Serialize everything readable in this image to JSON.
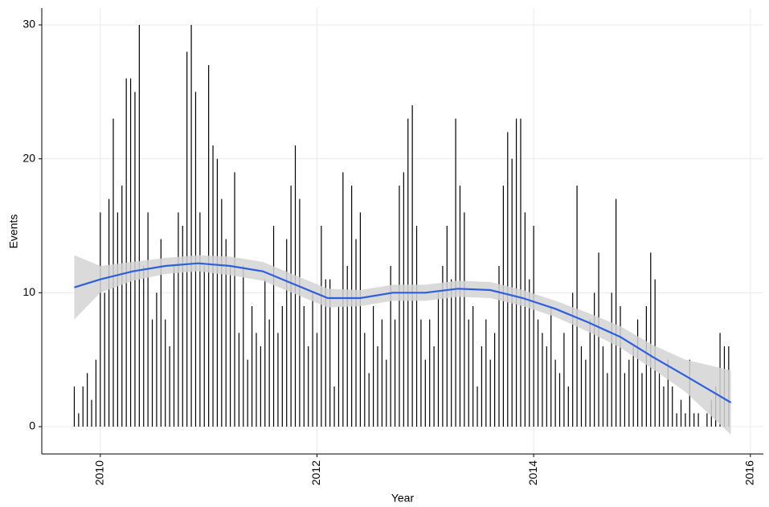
{
  "chart_data": {
    "type": "bar",
    "x_label": "Year",
    "y_label": "Events",
    "x": [
      2009.76,
      2009.8,
      2009.84,
      2009.88,
      2009.92,
      2009.96,
      2010.0,
      2010.04,
      2010.08,
      2010.12,
      2010.16,
      2010.2,
      2010.24,
      2010.28,
      2010.32,
      2010.36,
      2010.4,
      2010.44,
      2010.48,
      2010.52,
      2010.56,
      2010.6,
      2010.64,
      2010.68,
      2010.72,
      2010.76,
      2010.8,
      2010.84,
      2010.88,
      2010.92,
      2010.96,
      2011.0,
      2011.04,
      2011.08,
      2011.12,
      2011.16,
      2011.2,
      2011.24,
      2011.28,
      2011.32,
      2011.36,
      2011.4,
      2011.44,
      2011.48,
      2011.52,
      2011.56,
      2011.6,
      2011.64,
      2011.68,
      2011.72,
      2011.76,
      2011.8,
      2011.84,
      2011.88,
      2011.92,
      2011.96,
      2012.0,
      2012.04,
      2012.08,
      2012.12,
      2012.16,
      2012.2,
      2012.24,
      2012.28,
      2012.32,
      2012.36,
      2012.4,
      2012.44,
      2012.48,
      2012.52,
      2012.56,
      2012.6,
      2012.64,
      2012.68,
      2012.72,
      2012.76,
      2012.8,
      2012.84,
      2012.88,
      2012.92,
      2012.96,
      2013.0,
      2013.04,
      2013.08,
      2013.12,
      2013.16,
      2013.2,
      2013.24,
      2013.28,
      2013.32,
      2013.36,
      2013.4,
      2013.44,
      2013.48,
      2013.52,
      2013.56,
      2013.6,
      2013.64,
      2013.68,
      2013.72,
      2013.76,
      2013.8,
      2013.84,
      2013.88,
      2013.92,
      2013.96,
      2014.0,
      2014.04,
      2014.08,
      2014.12,
      2014.16,
      2014.2,
      2014.24,
      2014.28,
      2014.32,
      2014.36,
      2014.4,
      2014.44,
      2014.48,
      2014.52,
      2014.56,
      2014.6,
      2014.64,
      2014.68,
      2014.72,
      2014.76,
      2014.8,
      2014.84,
      2014.88,
      2014.92,
      2014.96,
      2015.0,
      2015.04,
      2015.08,
      2015.12,
      2015.16,
      2015.2,
      2015.24,
      2015.28,
      2015.32,
      2015.36,
      2015.4,
      2015.44,
      2015.48,
      2015.52,
      2015.56,
      2015.6,
      2015.64,
      2015.68,
      2015.72,
      2015.76,
      2015.8
    ],
    "values": [
      3,
      1,
      3,
      4,
      2,
      5,
      16,
      10,
      17,
      23,
      16,
      18,
      26,
      26,
      25,
      30,
      12,
      16,
      8,
      10,
      14,
      8,
      6,
      12,
      16,
      15,
      28,
      30,
      25,
      16,
      12,
      27,
      21,
      20,
      17,
      14,
      12,
      19,
      7,
      12,
      5,
      9,
      7,
      6,
      11,
      8,
      15,
      7,
      9,
      14,
      18,
      21,
      17,
      9,
      6,
      10,
      7,
      15,
      11,
      11,
      3,
      9,
      19,
      12,
      18,
      14,
      16,
      7,
      4,
      9,
      6,
      8,
      5,
      12,
      8,
      18,
      19,
      23,
      24,
      15,
      8,
      5,
      8,
      6,
      10,
      12,
      15,
      11,
      23,
      18,
      16,
      8,
      9,
      3,
      6,
      8,
      5,
      7,
      12,
      18,
      22,
      20,
      23,
      23,
      16,
      11,
      15,
      8,
      7,
      6,
      9,
      5,
      4,
      7,
      3,
      10,
      18,
      6,
      5,
      8,
      10,
      13,
      6,
      4,
      10,
      17,
      9,
      4,
      5,
      6,
      8,
      4,
      9,
      13,
      11,
      4,
      3,
      5,
      3,
      1,
      2,
      1,
      5,
      1,
      1,
      0,
      1,
      2,
      3,
      7,
      6,
      6
    ],
    "color": "#000000",
    "smooth": {
      "color": "#2c5fe0",
      "band_color": "#d3d3d3",
      "x": [
        2009.76,
        2010.0,
        2010.3,
        2010.6,
        2010.9,
        2011.2,
        2011.5,
        2011.8,
        2012.1,
        2012.4,
        2012.7,
        2013.0,
        2013.3,
        2013.6,
        2013.9,
        2014.2,
        2014.5,
        2014.8,
        2015.1,
        2015.4,
        2015.82
      ],
      "values": [
        10.4,
        11.0,
        11.6,
        12.0,
        12.2,
        12.0,
        11.6,
        10.6,
        9.6,
        9.6,
        10.0,
        10.0,
        10.3,
        10.2,
        9.6,
        8.8,
        7.8,
        6.7,
        5.2,
        3.8,
        1.8
      ],
      "lower": [
        8.0,
        10.0,
        10.9,
        11.4,
        11.6,
        11.3,
        10.9,
        9.9,
        8.9,
        9.0,
        9.4,
        9.4,
        9.7,
        9.6,
        9.0,
        8.2,
        7.1,
        5.9,
        4.3,
        2.6,
        -0.6
      ],
      "upper": [
        12.8,
        12.0,
        12.3,
        12.6,
        12.8,
        12.7,
        12.3,
        11.3,
        10.3,
        10.2,
        10.6,
        10.6,
        10.9,
        10.8,
        10.2,
        9.4,
        8.5,
        7.5,
        6.1,
        5.0,
        4.2
      ]
    },
    "xlim": [
      2009.46,
      2016.12
    ],
    "xticks": [
      2010,
      2012,
      2014,
      2016
    ],
    "ylim": [
      -2.04,
      31.26
    ],
    "yticks": [
      0,
      10,
      20,
      30
    ],
    "grid": true
  }
}
